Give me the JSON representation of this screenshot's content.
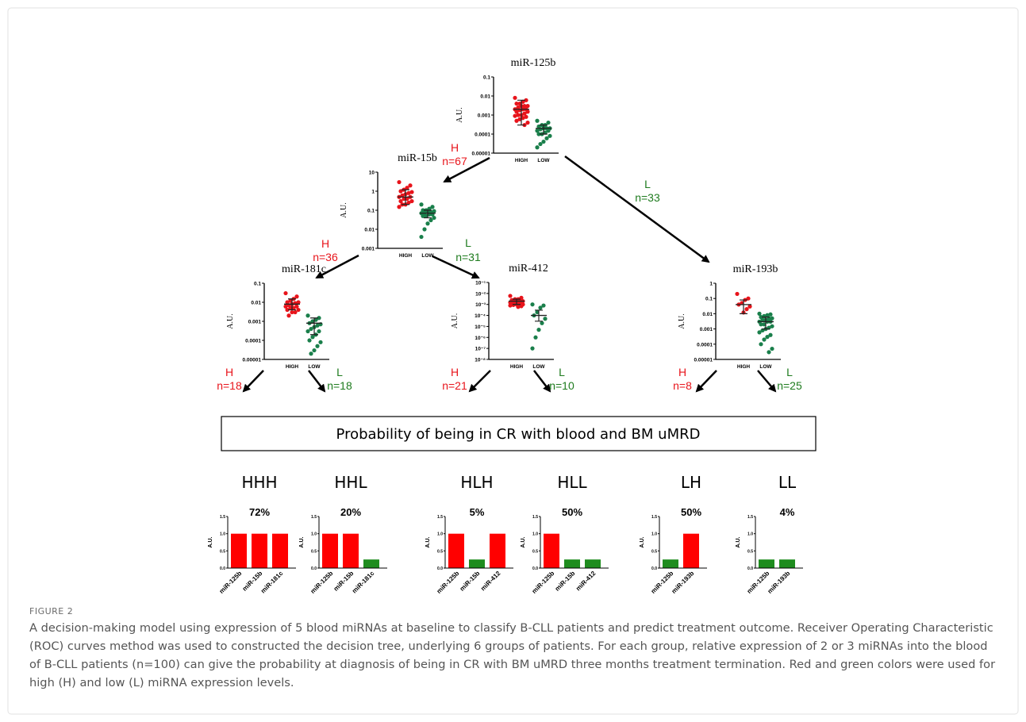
{
  "chart_data": [
    {
      "type": "scatter",
      "title": "miR-125b",
      "ylabel": "A.U.",
      "categories": [
        "HIGH",
        "LOW"
      ],
      "log": true,
      "ylim": [
        1e-05,
        0.1
      ],
      "yticks": [
        0.1,
        0.01,
        0.001,
        0.0001,
        1e-05
      ],
      "series": [
        {
          "color": "#e8141b",
          "values": [
            0.008,
            0.006,
            0.005,
            0.004,
            0.004,
            0.003,
            0.003,
            0.003,
            0.0025,
            0.002,
            0.002,
            0.002,
            0.0018,
            0.0015,
            0.0015,
            0.0012,
            0.001,
            0.001,
            0.0009,
            0.0008,
            0.0007,
            0.0006,
            0.0005,
            0.0004,
            0.0003
          ],
          "center": 0.002,
          "whisker": [
            0.0003,
            0.006
          ]
        },
        {
          "color": "#1a7f4b",
          "values": [
            0.0005,
            0.0004,
            0.0003,
            0.0003,
            0.00025,
            0.0002,
            0.0002,
            0.0002,
            0.00018,
            0.00015,
            0.00015,
            0.00012,
            0.0001,
            0.0001,
            8e-05,
            6e-05,
            4e-05,
            3e-05,
            2e-05
          ],
          "center": 0.0002,
          "whisker": [
            0.0001,
            0.0003
          ]
        }
      ]
    },
    {
      "type": "scatter",
      "title": "miR-15b",
      "ylabel": "A.U.",
      "categories": [
        "HIGH",
        "LOW"
      ],
      "log": true,
      "ylim": [
        0.001,
        10
      ],
      "yticks": [
        10,
        1,
        0.1,
        0.01,
        0.001
      ],
      "series": [
        {
          "color": "#e8141b",
          "values": [
            3,
            2,
            1.5,
            1.2,
            1,
            0.9,
            0.8,
            0.7,
            0.6,
            0.5,
            0.5,
            0.4,
            0.4,
            0.3,
            0.3,
            0.25,
            0.2,
            0.2,
            0.15
          ],
          "center": 0.5,
          "whisker": [
            0.2,
            1.2
          ]
        },
        {
          "color": "#1a7f4b",
          "values": [
            0.2,
            0.15,
            0.12,
            0.1,
            0.1,
            0.09,
            0.08,
            0.08,
            0.07,
            0.07,
            0.06,
            0.06,
            0.05,
            0.05,
            0.04,
            0.03,
            0.02,
            0.01,
            0.004
          ],
          "center": 0.07,
          "whisker": [
            0.04,
            0.1
          ]
        }
      ]
    },
    {
      "type": "scatter",
      "title": "miR-181c",
      "ylabel": "A.U.",
      "categories": [
        "HIGH",
        "LOW"
      ],
      "log": true,
      "ylim": [
        1e-05,
        0.1
      ],
      "yticks": [
        0.1,
        0.01,
        0.001,
        0.0001,
        1e-05
      ],
      "series": [
        {
          "color": "#e8141b",
          "values": [
            0.03,
            0.02,
            0.015,
            0.012,
            0.01,
            0.01,
            0.009,
            0.008,
            0.007,
            0.006,
            0.006,
            0.005,
            0.005,
            0.004,
            0.004,
            0.003,
            0.003,
            0.002
          ],
          "center": 0.008,
          "whisker": [
            0.004,
            0.015
          ]
        },
        {
          "color": "#1a7f4b",
          "values": [
            0.002,
            0.0015,
            0.0012,
            0.001,
            0.0008,
            0.0007,
            0.0006,
            0.0005,
            0.0004,
            0.0003,
            0.0003,
            0.0002,
            0.00015,
            0.0001,
            8e-05,
            5e-05,
            3e-05,
            2e-05
          ],
          "center": 0.0008,
          "whisker": [
            0.0002,
            0.0015
          ]
        }
      ]
    },
    {
      "type": "scatter",
      "title": "miR-412",
      "ylabel": "A.U.",
      "categories": [
        "HIGH",
        "LOW"
      ],
      "log": true,
      "ylim": [
        1e-08,
        0.1
      ],
      "yticks": [
        {
          "value": 0.1,
          "label": "10⁻¹"
        },
        {
          "value": 0.01,
          "label": "10⁻²"
        },
        {
          "value": 0.001,
          "label": "10⁻³"
        },
        {
          "value": 0.0001,
          "label": "10⁻⁴"
        },
        {
          "value": 1e-05,
          "label": "10⁻⁵"
        },
        {
          "value": 1e-06,
          "label": "10⁻⁶"
        },
        {
          "value": 1e-07,
          "label": "10⁻⁷"
        },
        {
          "value": 1e-08,
          "label": "10⁻⁸"
        }
      ],
      "series": [
        {
          "color": "#e8141b",
          "values": [
            0.006,
            0.004,
            0.003,
            0.003,
            0.0025,
            0.002,
            0.002,
            0.002,
            0.0018,
            0.0015,
            0.0015,
            0.0015,
            0.0012,
            0.0012,
            0.001,
            0.001,
            0.001,
            0.0009,
            0.0008,
            0.0007,
            0.0006
          ],
          "center": 0.002,
          "whisker": [
            0.001,
            0.003
          ]
        },
        {
          "color": "#1a7f4b",
          "values": [
            0.001,
            0.0008,
            0.0005,
            0.0002,
            0.0001,
            5e-05,
            2e-05,
            5e-06,
            1e-06,
            1e-07
          ],
          "center": 0.0001,
          "whisker": [
            3e-05,
            0.0003
          ]
        }
      ]
    },
    {
      "type": "scatter",
      "title": "miR-193b",
      "ylabel": "A.U.",
      "categories": [
        "HIGH",
        "LOW"
      ],
      "log": true,
      "ylim": [
        1e-05,
        1
      ],
      "yticks": [
        1,
        0.1,
        0.01,
        0.001,
        0.0001,
        1e-05
      ],
      "series": [
        {
          "color": "#e8141b",
          "values": [
            0.2,
            0.1,
            0.08,
            0.05,
            0.04,
            0.03,
            0.02,
            0.012
          ],
          "center": 0.04,
          "whisker": [
            0.01,
            0.08
          ]
        },
        {
          "color": "#1a7f4b",
          "values": [
            0.01,
            0.009,
            0.008,
            0.007,
            0.006,
            0.005,
            0.005,
            0.004,
            0.004,
            0.003,
            0.003,
            0.003,
            0.002,
            0.002,
            0.0015,
            0.0012,
            0.001,
            0.0008,
            0.0006,
            0.0004,
            0.0003,
            0.0002,
            0.0001,
            5e-05,
            3e-05
          ],
          "center": 0.003,
          "whisker": [
            0.001,
            0.006
          ]
        }
      ]
    },
    {
      "type": "bar",
      "title": "HHH",
      "subtitle": "72%",
      "ylabel": "A.U.",
      "categories": [
        "miR-125b",
        "miR-15b",
        "miR-181c"
      ],
      "values": [
        1,
        1,
        1
      ],
      "colors": [
        "#ff0000",
        "#ff0000",
        "#ff0000"
      ],
      "ylim": [
        0,
        1.5
      ],
      "yticks": [
        {
          "value": 0,
          "label": "0.0"
        },
        0.5,
        {
          "value": 1,
          "label": "1.0"
        },
        1.5
      ]
    },
    {
      "type": "bar",
      "title": "HHL",
      "subtitle": "20%",
      "ylabel": "A.U.",
      "categories": [
        "miR-125b",
        "miR-15b",
        "miR-181c"
      ],
      "values": [
        1,
        1,
        0.25
      ],
      "colors": [
        "#ff0000",
        "#ff0000",
        "#1e8c1e"
      ],
      "ylim": [
        0,
        1.5
      ],
      "yticks": [
        {
          "value": 0,
          "label": "0.0"
        },
        0.5,
        {
          "value": 1,
          "label": "1.0"
        },
        1.5
      ]
    },
    {
      "type": "bar",
      "title": "HLH",
      "subtitle": "5%",
      "ylabel": "A.U.",
      "categories": [
        "miR-125b",
        "miR-15b",
        "miR-412"
      ],
      "values": [
        1,
        0.25,
        1
      ],
      "colors": [
        "#ff0000",
        "#1e8c1e",
        "#ff0000"
      ],
      "ylim": [
        0,
        1.5
      ],
      "yticks": [
        {
          "value": 0,
          "label": "0.0"
        },
        0.5,
        {
          "value": 1,
          "label": "1.0"
        },
        1.5
      ]
    },
    {
      "type": "bar",
      "title": "HLL",
      "subtitle": "50%",
      "ylabel": "A.U.",
      "categories": [
        "miR-125b",
        "miR-15b",
        "miR-412"
      ],
      "values": [
        1,
        0.25,
        0.25
      ],
      "colors": [
        "#ff0000",
        "#1e8c1e",
        "#1e8c1e"
      ],
      "ylim": [
        0,
        1.5
      ],
      "yticks": [
        {
          "value": 0,
          "label": "0.0"
        },
        0.5,
        {
          "value": 1,
          "label": "1.0"
        },
        1.5
      ]
    },
    {
      "type": "bar",
      "title": "LH",
      "subtitle": "50%",
      "ylabel": "A.U.",
      "categories": [
        "miR-125b",
        "miR-193b"
      ],
      "values": [
        0.25,
        1
      ],
      "colors": [
        "#1e8c1e",
        "#ff0000"
      ],
      "ylim": [
        0,
        1.5
      ],
      "yticks": [
        {
          "value": 0,
          "label": "0.0"
        },
        0.5,
        {
          "value": 1,
          "label": "1.0"
        },
        1.5
      ]
    },
    {
      "type": "bar",
      "title": "LL",
      "subtitle": "4%",
      "ylabel": "A.U.",
      "categories": [
        "miR-125b",
        "miR-193b"
      ],
      "values": [
        0.25,
        0.25
      ],
      "colors": [
        "#1e8c1e",
        "#1e8c1e"
      ],
      "ylim": [
        0,
        1.5
      ],
      "yticks": [
        {
          "value": 0,
          "label": "0.0"
        },
        0.5,
        {
          "value": 1,
          "label": "1.0"
        },
        1.5
      ]
    }
  ],
  "branches": [
    {
      "level": "H",
      "count": "n=67"
    },
    {
      "level": "L",
      "count": "n=33"
    },
    {
      "level": "H",
      "count": "n=36"
    },
    {
      "level": "L",
      "count": "n=31"
    },
    {
      "level": "H",
      "count": "n=18"
    },
    {
      "level": "L",
      "count": "n=18"
    },
    {
      "level": "H",
      "count": "n=21"
    },
    {
      "level": "L",
      "count": "n=10"
    },
    {
      "level": "H",
      "count": "n=8"
    },
    {
      "level": "L",
      "count": "n=25"
    }
  ],
  "box_text": "Probability of being in CR with blood and BM uMRD",
  "figure_label": "FIGURE 2",
  "caption": "A decision-making model using expression of 5 blood miRNAs at baseline to classify B-CLL patients and predict treatment outcome. Receiver Operating Characteristic (ROC) curves method was used to constructed the decision tree, underlying 6 groups of patients. For each group, relative expression of 2 or 3 miRNAs into the blood of B-CLL patients (n=100) can give the probability at diagnosis of being in CR with BM uMRD three months treatment termination. Red and green colors were used for high (H) and low (L) miRNA expression levels."
}
